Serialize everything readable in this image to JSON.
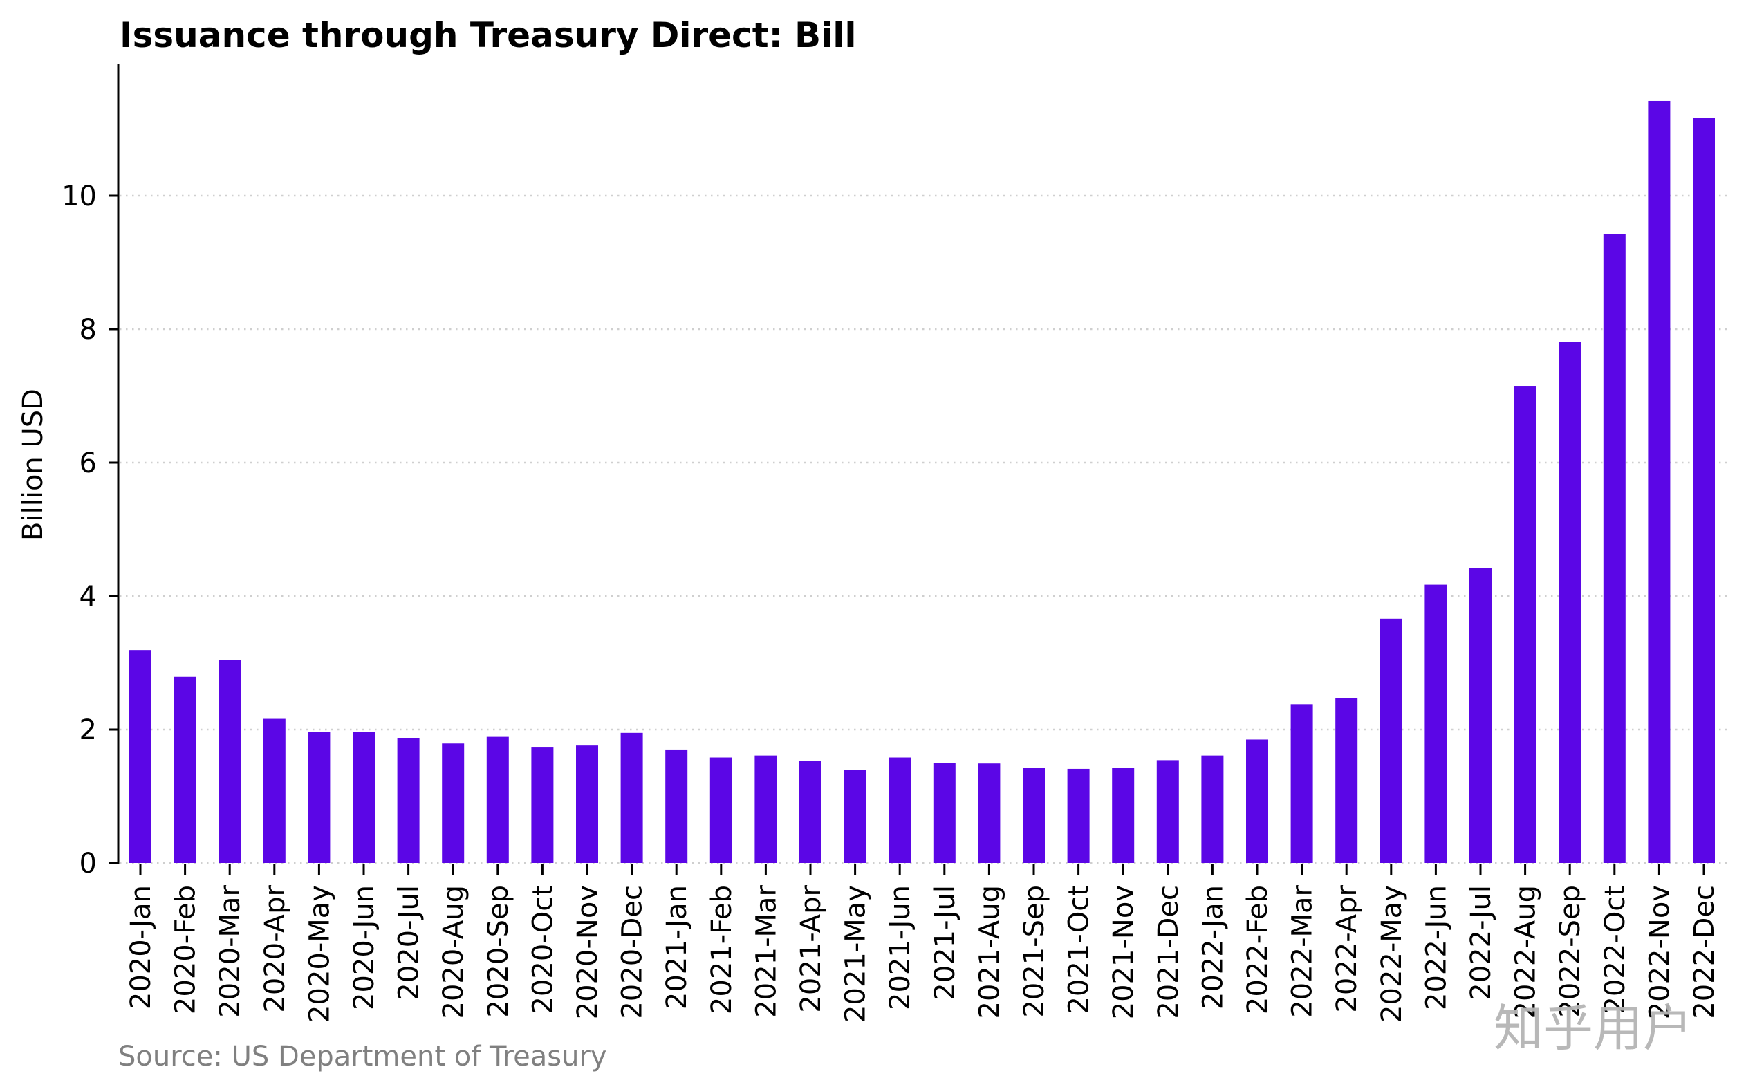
{
  "chart_data": {
    "type": "bar",
    "title": "Issuance through Treasury Direct: Bill",
    "xlabel": "",
    "ylabel": "Billion USD",
    "ylim": [
      0,
      12
    ],
    "yticks": [
      0,
      2,
      4,
      6,
      8,
      10
    ],
    "grid": "horizontal-dotted",
    "legend": "none",
    "bar_color": "#5B06E6",
    "categories": [
      "2020-Jan",
      "2020-Feb",
      "2020-Mar",
      "2020-Apr",
      "2020-May",
      "2020-Jun",
      "2020-Jul",
      "2020-Aug",
      "2020-Sep",
      "2020-Oct",
      "2020-Nov",
      "2020-Dec",
      "2021-Jan",
      "2021-Feb",
      "2021-Mar",
      "2021-Apr",
      "2021-May",
      "2021-Jun",
      "2021-Jul",
      "2021-Aug",
      "2021-Sep",
      "2021-Oct",
      "2021-Nov",
      "2021-Dec",
      "2022-Jan",
      "2022-Feb",
      "2022-Mar",
      "2022-Apr",
      "2022-May",
      "2022-Jun",
      "2022-Jul",
      "2022-Aug",
      "2022-Sep",
      "2022-Oct",
      "2022-Nov",
      "2022-Dec"
    ],
    "values": [
      3.19,
      2.79,
      3.04,
      2.16,
      1.96,
      1.96,
      1.87,
      1.79,
      1.89,
      1.73,
      1.76,
      1.95,
      1.7,
      1.58,
      1.61,
      1.53,
      1.39,
      1.58,
      1.5,
      1.49,
      1.42,
      1.41,
      1.43,
      1.54,
      1.61,
      1.85,
      2.38,
      2.47,
      3.66,
      4.17,
      4.42,
      7.15,
      7.81,
      9.42,
      11.42,
      11.17
    ],
    "source": "Source: US Department of Treasury",
    "watermark": "知乎用户"
  }
}
